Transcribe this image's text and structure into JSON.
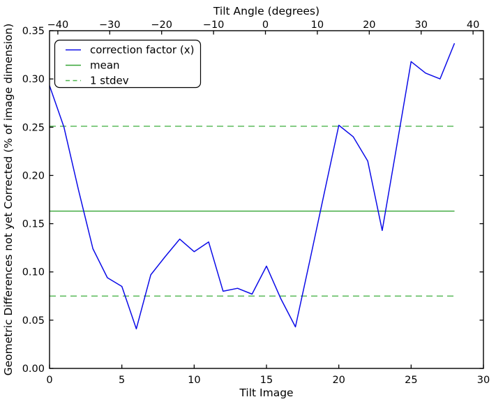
{
  "figure": {
    "kind": "line-plot-screenshot",
    "background": "#ffffff"
  },
  "axes": {
    "top": {
      "label": "Tilt Angle (degrees)",
      "ticks": [
        -40,
        -30,
        -20,
        -10,
        0,
        10,
        20,
        30,
        40
      ],
      "range": [
        -41.6,
        42.0
      ]
    },
    "bottom": {
      "label": "Tilt Image",
      "ticks": [
        0,
        5,
        10,
        15,
        20,
        25,
        30
      ],
      "range": [
        0,
        30
      ]
    },
    "y": {
      "label": "Geometric Differences not yet Corrected (% of image dimension)",
      "ticks": [
        0.0,
        0.05,
        0.1,
        0.15,
        0.2,
        0.25,
        0.3,
        0.35
      ],
      "range": [
        0,
        0.35
      ],
      "tick_decimals": 2
    }
  },
  "legend": {
    "items": [
      {
        "label": "correction factor (x)",
        "color": "#0b0be8",
        "dash": "solid"
      },
      {
        "label": "mean",
        "color": "#35a435",
        "dash": "solid"
      },
      {
        "label": "1 stdev",
        "color": "#4db54d",
        "dash": "dashed"
      }
    ]
  },
  "colors": {
    "line": "#0b0be8",
    "mean": "#35a435",
    "stdev": "#4db54d",
    "axis": "#000000",
    "background": "#ffffff"
  },
  "chart_data": {
    "type": "line",
    "title": "",
    "top_xlabel": "Tilt Angle (degrees)",
    "xlabel": "Tilt Image",
    "ylabel": "Geometric Differences not yet Corrected (% of image dimension)",
    "xlim": [
      0,
      30
    ],
    "ylim": [
      0.0,
      0.35
    ],
    "top_xlim": [
      -41.6,
      42.0
    ],
    "grid": false,
    "legend_position": "upper left",
    "x": [
      0,
      1,
      2,
      3,
      4,
      5,
      6,
      7,
      8,
      9,
      10,
      11,
      12,
      13,
      14,
      15,
      16,
      17,
      18,
      19,
      20,
      21,
      22,
      23,
      24,
      25,
      26,
      27,
      28
    ],
    "series": [
      {
        "name": "correction factor (x)",
        "style": "solid",
        "values": [
          0.293,
          0.25,
          0.185,
          0.124,
          0.094,
          0.085,
          0.041,
          0.097,
          0.116,
          0.134,
          0.121,
          0.131,
          0.08,
          0.083,
          0.077,
          0.106,
          0.072,
          0.043,
          0.112,
          0.182,
          0.252,
          0.24,
          0.215,
          0.143,
          0.23,
          0.318,
          0.306,
          0.3,
          0.337
        ]
      }
    ],
    "mean": 0.163,
    "stdev": 0.088,
    "hline_x_extent": [
      0,
      28
    ]
  }
}
